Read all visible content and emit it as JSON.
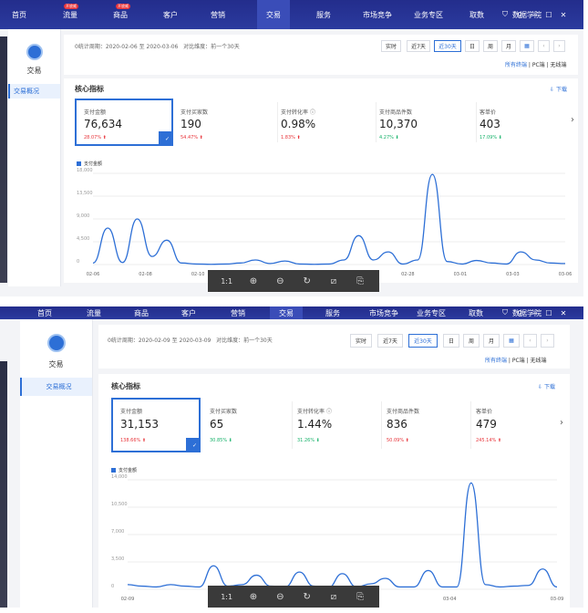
{
  "nav": [
    {
      "label": "首页"
    },
    {
      "label": "流量",
      "badge": "开放威"
    },
    {
      "label": "商品",
      "badge": "开放威"
    },
    {
      "label": "客户"
    },
    {
      "label": "营销"
    },
    {
      "label": "交易",
      "active": true
    },
    {
      "label": "服务"
    },
    {
      "label": "市场竞争"
    },
    {
      "label": "业务专区"
    },
    {
      "label": "取数"
    },
    {
      "label": "数据学院"
    }
  ],
  "window_icons": [
    "shirt-icon",
    "pin-icon",
    "minimize-icon",
    "maximize-icon",
    "close-icon"
  ],
  "sidebar": {
    "title": "交易",
    "item": "交易概况"
  },
  "range_buttons": [
    "实时",
    "近7天",
    "近30天",
    "日",
    "周",
    "月"
  ],
  "terminals": {
    "all": "所有终端",
    "pc": "PC端",
    "wireless": "无线端"
  },
  "core": {
    "title": "核心指标",
    "download": "下载"
  },
  "toolbar_icons": [
    "1:1",
    "zoom-in-icon",
    "zoom-out-icon",
    "rotate-icon",
    "crop-icon",
    "save-icon"
  ],
  "colors": {
    "accent": "#2d6fd6",
    "nav_bg": "#2b3a9e",
    "up": "#e8343a",
    "down": "#17b26a"
  },
  "screens": [
    {
      "period": "0统计周期：2020-02-06 至 2020-03-06",
      "compare": "对比维度：前一个30天",
      "selected_range": "近30天",
      "metrics": [
        {
          "label": "支付金额",
          "value": "76,634",
          "change": "28.07%",
          "dir": "up",
          "selected": true
        },
        {
          "label": "支付买家数",
          "value": "190",
          "change": "54.47%",
          "dir": "up"
        },
        {
          "label": "支付转化率",
          "value": "0.98%",
          "change": "1.83%",
          "dir": "up",
          "info": true
        },
        {
          "label": "支付商品件数",
          "value": "10,370",
          "change": "4.27%",
          "dir": "down"
        },
        {
          "label": "客单价",
          "value": "403",
          "change": "17.09%",
          "dir": "down"
        }
      ],
      "chart_data": {
        "type": "line",
        "series": [
          {
            "name": "支付金额",
            "values": [
              300,
              7200,
              400,
              9000,
              1600,
              4800,
              300,
              100,
              50,
              100,
              300,
              900,
              200,
              700,
              100,
              50,
              100,
              900,
              5700,
              900,
              2500,
              100,
              900,
              17800,
              600,
              100,
              800,
              300,
              100,
              2500,
              900,
              300,
              200
            ]
          }
        ],
        "y_ticks": [
          "18,000",
          "13,500",
          "9,000",
          "4,500",
          "0"
        ],
        "ylim": [
          0,
          18000
        ],
        "x_ticks": [
          "02-06",
          "02-08",
          "02-10",
          "02-12",
          "02-24",
          "02-26",
          "02-28",
          "03-01",
          "03-03",
          "03-06"
        ]
      }
    },
    {
      "period": "0统计周期：2020-02-09 至 2020-03-09",
      "compare": "对比维度：前一个30天",
      "selected_range": "近30天",
      "metrics": [
        {
          "label": "支付金额",
          "value": "31,153",
          "change": "138.66%",
          "dir": "up",
          "selected": true
        },
        {
          "label": "支付买家数",
          "value": "65",
          "change": "30.85%",
          "dir": "down"
        },
        {
          "label": "支付转化率",
          "value": "1.44%",
          "change": "31.26%",
          "dir": "down",
          "info": true
        },
        {
          "label": "支付商品件数",
          "value": "836",
          "change": "50.09%",
          "dir": "up"
        },
        {
          "label": "客单价",
          "value": "479",
          "change": "245.14%",
          "dir": "up"
        }
      ],
      "chart_data": {
        "type": "line",
        "series": [
          {
            "name": "支付金额",
            "values": [
              600,
              400,
              300,
              600,
              400,
              300,
              3000,
              400,
              600,
              1800,
              400,
              300,
              2200,
              400,
              200,
              2000,
              300,
              700,
              1400,
              300,
              300,
              2400,
              300,
              300,
              13600,
              600,
              300,
              400,
              500,
              2600,
              300
            ]
          }
        ],
        "y_ticks": [
          "14,000",
          "10,500",
          "7,000",
          "3,500",
          "0"
        ],
        "ylim": [
          0,
          14000
        ],
        "x_ticks": [
          "02-09",
          "02-12",
          "02-27",
          "03-04",
          "03-09"
        ]
      }
    }
  ]
}
